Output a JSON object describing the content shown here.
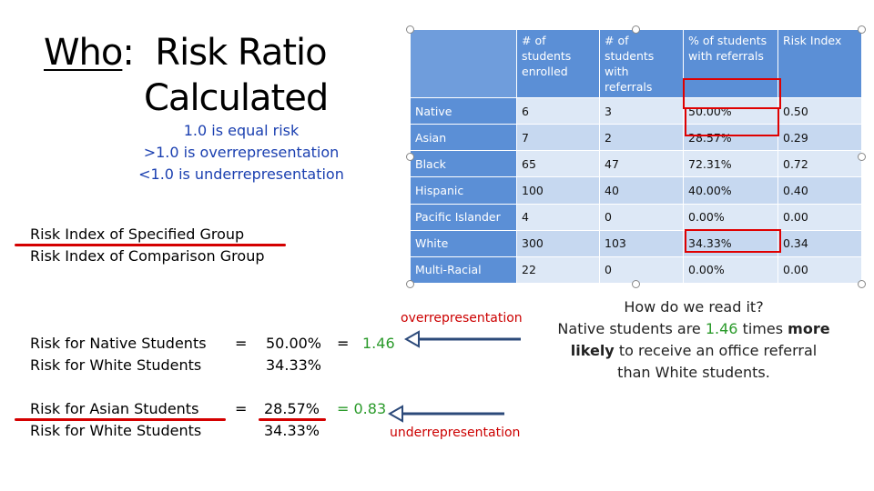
{
  "title": {
    "who": "Who",
    "colon": ":",
    "line1_rest": "  Risk Ratio",
    "line2": "Calculated"
  },
  "risk_notes": [
    "1.0 is equal risk",
    ">1.0 is overrepresentation",
    "<1.0 is underrepresentation"
  ],
  "ratio_definition": {
    "numerator": "Risk Index of Specified Group",
    "denominator": "Risk Index of Comparison Group"
  },
  "table": {
    "headers": [
      "",
      "# of students enrolled",
      "# of students with referrals",
      "% of students with referrals",
      "Risk Index"
    ],
    "rows": [
      {
        "group": "Native",
        "enrolled": "6",
        "referrals": "3",
        "percent": "50.00%",
        "risk": "0.50"
      },
      {
        "group": "Asian",
        "enrolled": "7",
        "referrals": "2",
        "percent": "28.57%",
        "risk": "0.29"
      },
      {
        "group": "Black",
        "enrolled": "65",
        "referrals": "47",
        "percent": "72.31%",
        "risk": "0.72"
      },
      {
        "group": "Hispanic",
        "enrolled": "100",
        "referrals": "40",
        "percent": "40.00%",
        "risk": "0.40"
      },
      {
        "group": "Pacific Islander",
        "enrolled": "4",
        "referrals": "0",
        "percent": "0.00%",
        "risk": "0.00"
      },
      {
        "group": "White",
        "enrolled": "300",
        "referrals": "103",
        "percent": "34.33%",
        "risk": "0.34"
      },
      {
        "group": "Multi-Racial",
        "enrolled": "22",
        "referrals": "0",
        "percent": "0.00%",
        "risk": "0.00"
      }
    ]
  },
  "calc_native": {
    "num_label": "Risk for Native Students",
    "den_label": "Risk for White Students",
    "eq": "=",
    "num_value": "50.00%",
    "den_value": "34.33%",
    "result_eq": "=",
    "result": "1.46",
    "note": "overrepresentation"
  },
  "calc_asian": {
    "num_label": "Risk for Asian Students",
    "den_label": "Risk for White Students",
    "eq": "=",
    "num_value": "28.57%",
    "den_value": "34.33%",
    "result": "= 0.83",
    "note": "underrepresentation"
  },
  "how_to_read": {
    "question": "How do we read it?",
    "part1": "Native students are ",
    "value": "1.46",
    "part2": " times",
    "bold": "more likely",
    "part3": " to receive an office referral than White students."
  },
  "colors": {
    "header_blue": "#5b8fd6",
    "row_light": "#dde8f6",
    "row_mid": "#c6d8f0",
    "highlight_red": "#e00000",
    "result_green": "#2a9a2a",
    "notes_blue": "#1a3fb0"
  }
}
